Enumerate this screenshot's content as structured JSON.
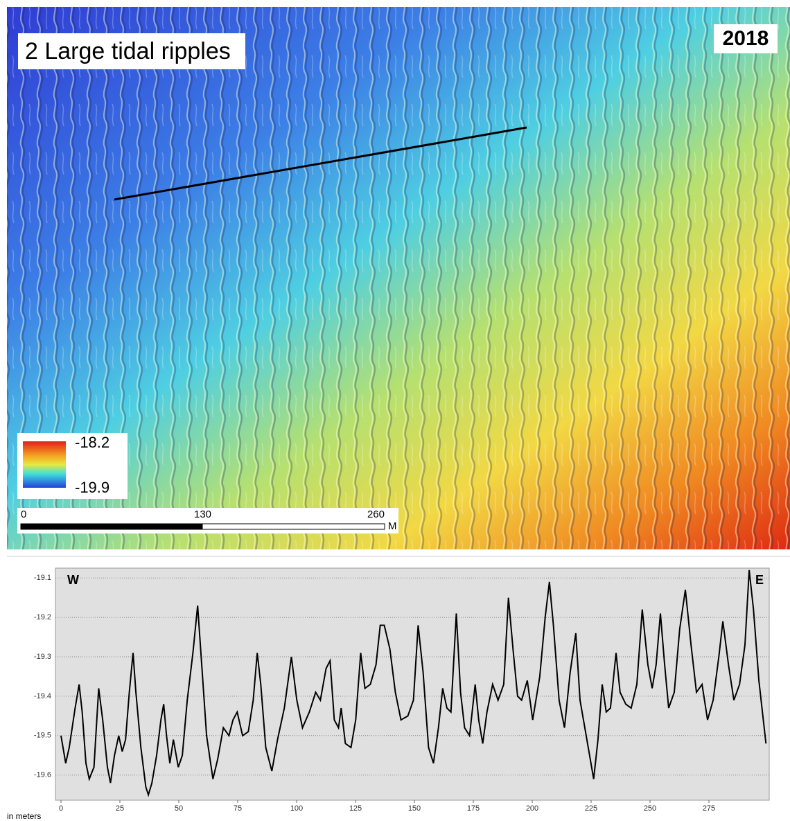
{
  "map": {
    "title": "2 Large tidal ripples",
    "year": "2018",
    "legend": {
      "max": -18.2,
      "min": -19.9
    },
    "scale_bar": {
      "ticks": [
        0,
        130,
        260
      ],
      "unit": "M"
    }
  },
  "chart_data": {
    "type": "line",
    "annotations": [
      "W",
      "E"
    ],
    "y_label": "in meters",
    "color": "#000000",
    "grid": true,
    "xlim": [
      0,
      300
    ],
    "xticks": [
      0,
      25,
      50,
      75,
      100,
      125,
      150,
      175,
      200,
      225,
      250,
      275
    ],
    "ylim": [
      -19.655,
      -19.075
    ],
    "yticks": [
      -19.1,
      -19.2,
      -19.3,
      -19.4,
      -19.5,
      -19.6
    ],
    "x": [
      0,
      2,
      3.5,
      6,
      7.7,
      9,
      10.6,
      12,
      14,
      16,
      17.7,
      19.7,
      21,
      22.7,
      24.5,
      26,
      27.4,
      29,
      30.6,
      31.8,
      33.9,
      36,
      37.1,
      38.6,
      40.6,
      42.4,
      43.6,
      44.8,
      46.2,
      47.7,
      49.8,
      51.5,
      53.6,
      56,
      58,
      59.5,
      61.8,
      64.5,
      66.5,
      68.9,
      71.3,
      73,
      74.8,
      77.1,
      79.5,
      81.6,
      83.3,
      84.8,
      86.9,
      89.5,
      91.9,
      94.8,
      97.8,
      100.1,
      102.5,
      105.4,
      108.1,
      110.1,
      112.5,
      114.2,
      116,
      117.8,
      118.9,
      120.7,
      123.1,
      125.1,
      127.2,
      129,
      131.3,
      133.7,
      135.5,
      137.2,
      139.6,
      141.9,
      144.3,
      147.2,
      149.6,
      151.6,
      153.7,
      156,
      158.1,
      160.2,
      162,
      163.8,
      165.5,
      167.8,
      169.6,
      171.3,
      173.4,
      175.8,
      177.3,
      179,
      180.8,
      183.2,
      185.5,
      187.9,
      189.9,
      192,
      193.8,
      195.5,
      197.9,
      200.2,
      203.2,
      205.5,
      207.3,
      209,
      211.4,
      213.7,
      216.1,
      218.5,
      220.3,
      222.9,
      226.1,
      227.9,
      229.7,
      231.4,
      233.2,
      235.6,
      237.3,
      239.7,
      242,
      244.4,
      246.7,
      249.1,
      250.9,
      252.6,
      254.4,
      256.2,
      257.9,
      260.3,
      262.6,
      265,
      267.4,
      269.7,
      272.1,
      274.4,
      276.8,
      279.2,
      280.9,
      283.3,
      285.6,
      288,
      290.3,
      292.1,
      293.9,
      296.2,
      299.2
    ],
    "values": [
      -19.5,
      -19.57,
      -19.53,
      -19.43,
      -19.37,
      -19.44,
      -19.57,
      -19.61,
      -19.58,
      -19.38,
      -19.46,
      -19.58,
      -19.62,
      -19.55,
      -19.5,
      -19.54,
      -19.51,
      -19.39,
      -19.29,
      -19.39,
      -19.53,
      -19.63,
      -19.65,
      -19.62,
      -19.55,
      -19.46,
      -19.42,
      -19.5,
      -19.57,
      -19.51,
      -19.58,
      -19.55,
      -19.41,
      -19.29,
      -19.17,
      -19.3,
      -19.5,
      -19.61,
      -19.56,
      -19.48,
      -19.5,
      -19.46,
      -19.44,
      -19.5,
      -19.49,
      -19.41,
      -19.29,
      -19.37,
      -19.53,
      -19.59,
      -19.51,
      -19.43,
      -19.3,
      -19.41,
      -19.48,
      -19.44,
      -19.39,
      -19.41,
      -19.33,
      -19.31,
      -19.46,
      -19.48,
      -19.43,
      -19.52,
      -19.53,
      -19.46,
      -19.29,
      -19.38,
      -19.37,
      -19.32,
      -19.22,
      -19.22,
      -19.28,
      -19.39,
      -19.46,
      -19.45,
      -19.41,
      -19.22,
      -19.34,
      -19.53,
      -19.57,
      -19.48,
      -19.38,
      -19.43,
      -19.44,
      -19.19,
      -19.39,
      -19.48,
      -19.5,
      -19.37,
      -19.46,
      -19.52,
      -19.44,
      -19.37,
      -19.41,
      -19.37,
      -19.15,
      -19.29,
      -19.4,
      -19.41,
      -19.36,
      -19.46,
      -19.35,
      -19.2,
      -19.11,
      -19.22,
      -19.41,
      -19.48,
      -19.34,
      -19.24,
      -19.41,
      -19.5,
      -19.61,
      -19.51,
      -19.37,
      -19.44,
      -19.43,
      -19.29,
      -19.39,
      -19.42,
      -19.43,
      -19.37,
      -19.18,
      -19.32,
      -19.38,
      -19.32,
      -19.19,
      -19.32,
      -19.43,
      -19.39,
      -19.23,
      -19.13,
      -19.27,
      -19.39,
      -19.37,
      -19.46,
      -19.41,
      -19.3,
      -19.21,
      -19.32,
      -19.41,
      -19.37,
      -19.27,
      -19.08,
      -19.18,
      -19.36,
      -19.52
    ]
  }
}
